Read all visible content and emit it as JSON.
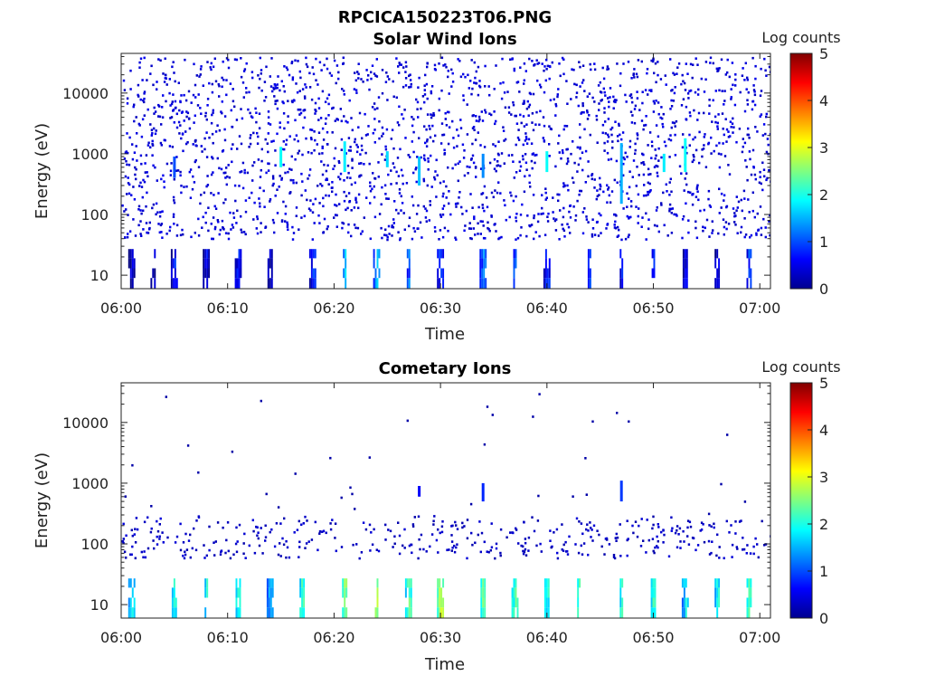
{
  "figure_title": "RPCICA150223T06.PNG",
  "chart_data": [
    {
      "type": "heatmap",
      "title": "Solar Wind Ions",
      "xlabel": "Time",
      "ylabel": "Energy (eV)",
      "x_ticks": [
        "06:00",
        "06:10",
        "06:20",
        "06:30",
        "06:40",
        "06:50",
        "07:00"
      ],
      "x_range": [
        "06:00",
        "07:01"
      ],
      "y_scale": "log",
      "y_ticks": [
        "10",
        "100",
        "1000",
        "10000"
      ],
      "y_range": [
        6,
        45000
      ],
      "colorbar": {
        "label": "Log counts",
        "range": [
          0,
          5
        ],
        "ticks": [
          "0",
          "1",
          "2",
          "3",
          "4",
          "5"
        ],
        "colormap": "jet"
      },
      "background_noise": {
        "energy_eV": [
          40,
          40000
        ],
        "log_counts": 0.3
      },
      "low_energy_bursts": [
        {
          "time": "06:01",
          "log_counts": 0.5
        },
        {
          "time": "06:03",
          "log_counts": 0.4
        },
        {
          "time": "06:05",
          "log_counts": 0.7
        },
        {
          "time": "06:08",
          "log_counts": 0.6
        },
        {
          "time": "06:11",
          "log_counts": 0.8
        },
        {
          "time": "06:14",
          "log_counts": 0.5
        },
        {
          "time": "06:18",
          "log_counts": 0.9
        },
        {
          "time": "06:21",
          "log_counts": 1.6
        },
        {
          "time": "06:24",
          "log_counts": 1.4
        },
        {
          "time": "06:27",
          "log_counts": 1.1
        },
        {
          "time": "06:30",
          "log_counts": 1.0
        },
        {
          "time": "06:34",
          "log_counts": 1.2
        },
        {
          "time": "06:37",
          "log_counts": 1.1
        },
        {
          "time": "06:40",
          "log_counts": 0.9
        },
        {
          "time": "06:44",
          "log_counts": 1.1
        },
        {
          "time": "06:47",
          "log_counts": 0.8
        },
        {
          "time": "06:50",
          "log_counts": 0.8
        },
        {
          "time": "06:53",
          "log_counts": 0.6
        },
        {
          "time": "06:56",
          "log_counts": 0.6
        },
        {
          "time": "06:59",
          "log_counts": 1.0
        }
      ],
      "mid_energy_spikes": [
        {
          "time": "06:05",
          "energy_eV": [
            400,
            900
          ],
          "log_counts": 1.0
        },
        {
          "time": "06:15",
          "energy_eV": [
            600,
            1300
          ],
          "log_counts": 1.9
        },
        {
          "time": "06:21",
          "energy_eV": [
            500,
            1600
          ],
          "log_counts": 1.8
        },
        {
          "time": "06:25",
          "energy_eV": [
            600,
            1100
          ],
          "log_counts": 1.7
        },
        {
          "time": "06:28",
          "energy_eV": [
            300,
            900
          ],
          "log_counts": 1.6
        },
        {
          "time": "06:34",
          "energy_eV": [
            400,
            1000
          ],
          "log_counts": 1.3
        },
        {
          "time": "06:40",
          "energy_eV": [
            500,
            1100
          ],
          "log_counts": 1.9
        },
        {
          "time": "06:47",
          "energy_eV": [
            150,
            1500
          ],
          "log_counts": 1.5
        },
        {
          "time": "06:51",
          "energy_eV": [
            500,
            1000
          ],
          "log_counts": 1.8
        },
        {
          "time": "06:53",
          "energy_eV": [
            500,
            1800
          ],
          "log_counts": 1.9
        }
      ]
    },
    {
      "type": "heatmap",
      "title": "Cometary Ions",
      "xlabel": "Time",
      "ylabel": "Energy (eV)",
      "x_ticks": [
        "06:00",
        "06:10",
        "06:20",
        "06:30",
        "06:40",
        "06:50",
        "07:00"
      ],
      "x_range": [
        "06:00",
        "07:01"
      ],
      "y_scale": "log",
      "y_ticks": [
        "10",
        "100",
        "1000",
        "10000"
      ],
      "y_range": [
        6,
        45000
      ],
      "colorbar": {
        "label": "Log counts",
        "range": [
          0,
          5
        ],
        "ticks": [
          "0",
          "1",
          "2",
          "3",
          "4",
          "5"
        ],
        "colormap": "jet"
      },
      "background_noise": {
        "energy_eV": [
          60,
          300
        ],
        "log_counts": 0.2
      },
      "low_energy_bursts": [
        {
          "time": "06:01",
          "log_counts": 1.8
        },
        {
          "time": "06:05",
          "log_counts": 2.0
        },
        {
          "time": "06:08",
          "log_counts": 1.9
        },
        {
          "time": "06:11",
          "log_counts": 2.1
        },
        {
          "time": "06:14",
          "log_counts": 1.5
        },
        {
          "time": "06:17",
          "log_counts": 2.2
        },
        {
          "time": "06:21",
          "log_counts": 2.5
        },
        {
          "time": "06:24",
          "log_counts": 2.6
        },
        {
          "time": "06:27",
          "log_counts": 2.3
        },
        {
          "time": "06:30",
          "log_counts": 2.8
        },
        {
          "time": "06:34",
          "log_counts": 2.4
        },
        {
          "time": "06:37",
          "log_counts": 2.3
        },
        {
          "time": "06:40",
          "log_counts": 2.0
        },
        {
          "time": "06:43",
          "log_counts": 2.2
        },
        {
          "time": "06:47",
          "log_counts": 2.1
        },
        {
          "time": "06:50",
          "log_counts": 2.2
        },
        {
          "time": "06:53",
          "log_counts": 1.8
        },
        {
          "time": "06:56",
          "log_counts": 2.0
        },
        {
          "time": "06:59",
          "log_counts": 2.3
        }
      ],
      "mid_energy_spikes": [
        {
          "time": "06:28",
          "energy_eV": [
            600,
            900
          ],
          "log_counts": 0.6
        },
        {
          "time": "06:34",
          "energy_eV": [
            500,
            1000
          ],
          "log_counts": 0.8
        },
        {
          "time": "06:47",
          "energy_eV": [
            500,
            1100
          ],
          "log_counts": 0.9
        }
      ]
    }
  ]
}
